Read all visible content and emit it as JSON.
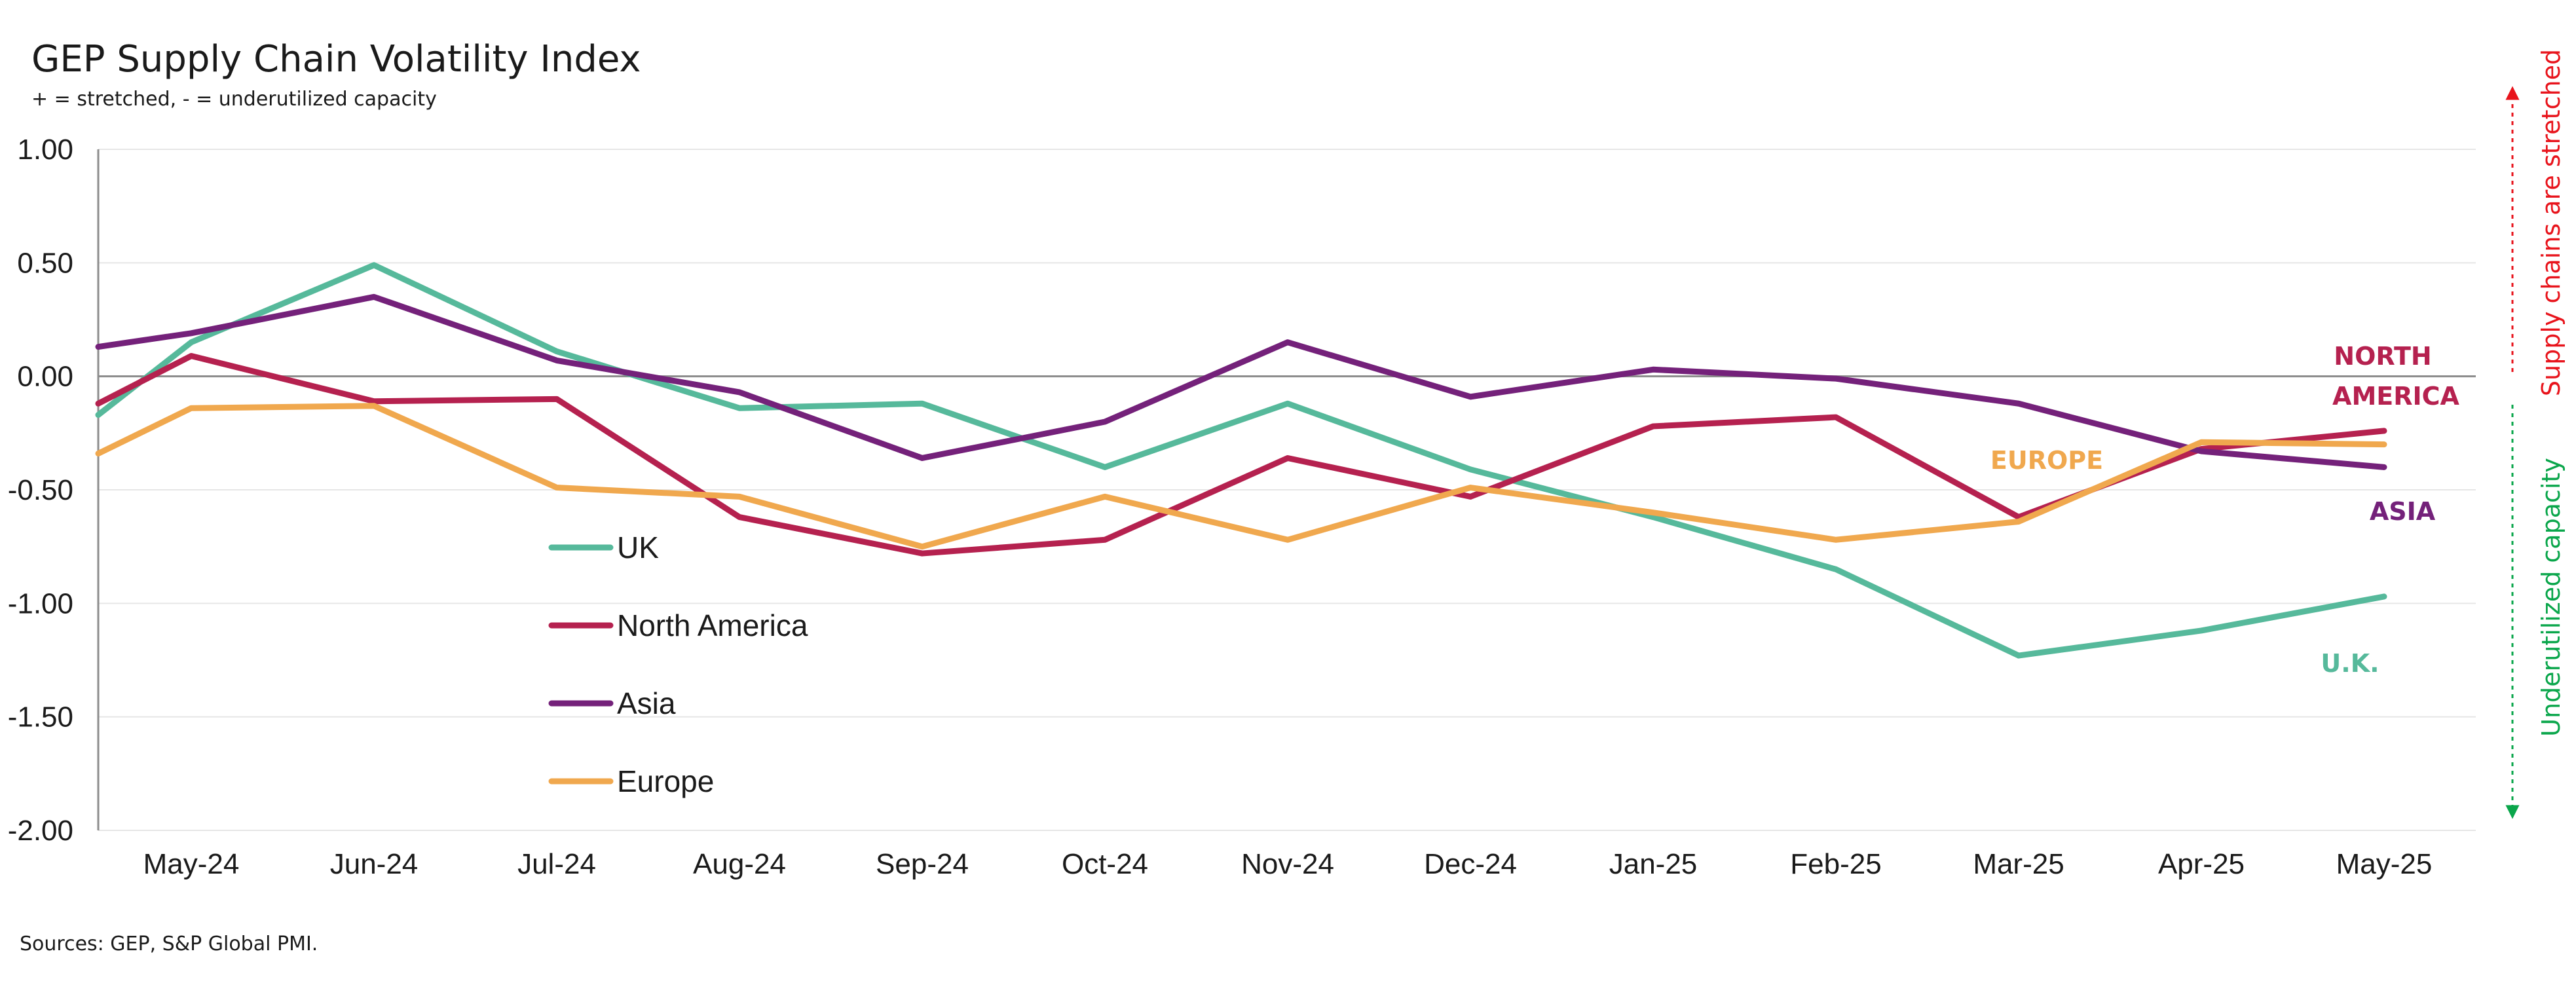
{
  "chart_data": {
    "type": "line",
    "title": "GEP Supply Chain Volatility Index",
    "subtitle": "+ = stretched, - = underutilized capacity",
    "source": "Sources: GEP, S&P Global PMI.",
    "categories": [
      "May-24",
      "Jun-24",
      "Jul-24",
      "Aug-24",
      "Sep-24",
      "Oct-24",
      "Nov-24",
      "Dec-24",
      "Jan-25",
      "Feb-25",
      "Mar-25",
      "Apr-25",
      "May-25"
    ],
    "ylim": [
      -2.0,
      1.0
    ],
    "yticks": [
      1.0,
      0.5,
      0.0,
      -0.5,
      -1.0,
      -1.5,
      -2.0
    ],
    "ytick_labels": [
      "1.00",
      "0.50",
      "0.00",
      "-0.50",
      "-1.00",
      "-1.50",
      "-2.00"
    ],
    "grid": true,
    "legend_position": "lower-left inside plot",
    "series": [
      {
        "name": "UK",
        "color": "#56b99b",
        "start": -0.17,
        "values": [
          0.15,
          0.49,
          0.11,
          -0.14,
          -0.12,
          -0.4,
          -0.12,
          -0.41,
          -0.62,
          -0.85,
          -1.23,
          -1.12,
          -0.97
        ]
      },
      {
        "name": "North America",
        "color": "#b5214f",
        "start": -0.12,
        "values": [
          0.09,
          -0.11,
          -0.1,
          -0.62,
          -0.78,
          -0.72,
          -0.36,
          -0.53,
          -0.22,
          -0.18,
          -0.62,
          -0.32,
          -0.24
        ]
      },
      {
        "name": "Asia",
        "color": "#74217a",
        "start": 0.13,
        "values": [
          0.19,
          0.35,
          0.07,
          -0.07,
          -0.36,
          -0.2,
          0.15,
          -0.09,
          0.03,
          -0.01,
          -0.12,
          -0.33,
          -0.4
        ]
      },
      {
        "name": "Europe",
        "color": "#f0a84e",
        "start": -0.34,
        "values": [
          -0.14,
          -0.13,
          -0.49,
          -0.53,
          -0.75,
          -0.53,
          -0.72,
          -0.49,
          -0.6,
          -0.72,
          -0.64,
          -0.29,
          -0.3
        ]
      }
    ],
    "end_labels": [
      {
        "text": "NORTH",
        "color": "#b5214f"
      },
      {
        "text": "AMERICA",
        "color": "#b5214f"
      },
      {
        "text": "EUROPE",
        "color": "#f0a84e"
      },
      {
        "text": "ASIA",
        "color": "#74217a"
      },
      {
        "text": "U.K.",
        "color": "#56b99b"
      }
    ],
    "side_labels": {
      "up": {
        "text": "Supply chains are stretched",
        "color": "#e8141c"
      },
      "down": {
        "text": "Underutilized capacity",
        "color": "#0aa64b"
      }
    }
  }
}
